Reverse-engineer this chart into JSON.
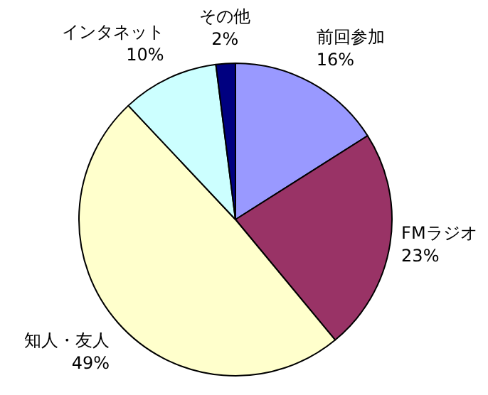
{
  "chart_data": {
    "type": "pie",
    "categories": [
      "前回参加",
      "FMラジオ",
      "知人・友人",
      "インタネット",
      "その他"
    ],
    "values": [
      16,
      23,
      49,
      10,
      2
    ],
    "value_labels": [
      "16%",
      "23%",
      "49%",
      "10%",
      "2%"
    ],
    "colors": [
      "#9999ff",
      "#993366",
      "#ffffcc",
      "#ccffff",
      "#000080"
    ]
  }
}
